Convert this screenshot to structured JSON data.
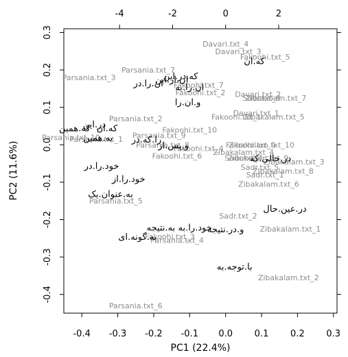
{
  "chart_data": {
    "type": "scatter",
    "xlabel": "PC1 (22.4%)",
    "ylabel": "PC2 (11.6%)",
    "xlim": [
      -0.45,
      0.31
    ],
    "ylim": [
      -0.45,
      0.31
    ],
    "xticks": [
      -0.4,
      -0.3,
      -0.2,
      -0.1,
      0.0,
      0.1,
      0.2,
      0.3
    ],
    "yticks": [
      -0.4,
      -0.3,
      -0.2,
      -0.1,
      0.0,
      0.1,
      0.2,
      0.3
    ],
    "top_xlim": [
      -6.1,
      4.2
    ],
    "top_xticks": [
      -4,
      -2,
      0,
      2
    ],
    "sample_color": "#8c8c8c",
    "variable_color": "#000000",
    "samples": [
      {
        "label": "Davari.txt_4",
        "x": 0.0,
        "y": 0.27
      },
      {
        "label": "Davari.txt_3",
        "x": 0.035,
        "y": 0.25
      },
      {
        "label": "Fakoohi.txt_5",
        "x": 0.11,
        "y": 0.235
      },
      {
        "label": "Parsania.txt_7",
        "x": -0.215,
        "y": 0.2
      },
      {
        "label": "Parsania.txt_3",
        "x": -0.38,
        "y": 0.18
      },
      {
        "label": "Fakoohi.txt_7",
        "x": -0.075,
        "y": 0.16
      },
      {
        "label": "Fakoohi.txt_2",
        "x": -0.07,
        "y": 0.14
      },
      {
        "label": "Davari.txt_2",
        "x": 0.09,
        "y": 0.135
      },
      {
        "label": "Zibakalam.txt_7",
        "x": 0.14,
        "y": 0.125
      },
      {
        "label": "Sadr.txt_6",
        "x": 0.1,
        "y": 0.125
      },
      {
        "label": "Davari.txt_1",
        "x": 0.085,
        "y": 0.085
      },
      {
        "label": "Fakoohi.txt_1",
        "x": 0.03,
        "y": 0.075
      },
      {
        "label": "Zibakalam.txt_5",
        "x": 0.135,
        "y": 0.075
      },
      {
        "label": "Parsania.txt_2",
        "x": -0.25,
        "y": 0.07
      },
      {
        "label": "Fakoohi.txt_10",
        "x": -0.1,
        "y": 0.04
      },
      {
        "label": "Parsania.txt_10",
        "x": -0.43,
        "y": 0.02
      },
      {
        "label": "Parsania.txt_1",
        "x": -0.36,
        "y": 0.015
      },
      {
        "label": "Parsania.txt_9",
        "x": -0.185,
        "y": 0.025
      },
      {
        "label": "Parsania.txt_8",
        "x": -0.175,
        "y": 0.0
      },
      {
        "label": "Fakoohi.txt_9",
        "x": 0.07,
        "y": 0.0
      },
      {
        "label": "Zibakalam.txt_10",
        "x": 0.1,
        "y": 0.0
      },
      {
        "label": "Fakoohi.txt_4",
        "x": -0.075,
        "y": -0.01
      },
      {
        "label": "Zibakalam.txt_4",
        "x": 0.05,
        "y": -0.02
      },
      {
        "label": "Fakoohi.txt_6",
        "x": -0.135,
        "y": -0.03
      },
      {
        "label": "Sadr.txt_4",
        "x": 0.05,
        "y": -0.035
      },
      {
        "label": "Zibakalam.txt_9",
        "x": 0.09,
        "y": -0.035
      },
      {
        "label": "Zibakalam.txt_3",
        "x": 0.19,
        "y": -0.045
      },
      {
        "label": "Sadr.txt_5",
        "x": 0.095,
        "y": -0.06
      },
      {
        "label": "Zibakalam.txt_8",
        "x": 0.16,
        "y": -0.07
      },
      {
        "label": "Sadr.txt_1",
        "x": 0.11,
        "y": -0.08
      },
      {
        "label": "Zibakalam.txt_6",
        "x": 0.12,
        "y": -0.105
      },
      {
        "label": "Parsania.txt_5",
        "x": -0.305,
        "y": -0.15
      },
      {
        "label": "Sadr.txt_2",
        "x": 0.035,
        "y": -0.19
      },
      {
        "label": "Zibakalam.txt_1",
        "x": 0.18,
        "y": -0.225
      },
      {
        "label": "Fakoohi.txt_3",
        "x": -0.155,
        "y": -0.245
      },
      {
        "label": "Parsania.txt_4",
        "x": -0.135,
        "y": -0.255
      },
      {
        "label": "Zibakalam.txt_2",
        "x": 0.175,
        "y": -0.355
      },
      {
        "label": "Parsania.txt_6",
        "x": -0.25,
        "y": -0.43
      }
    ],
    "variables": [
      {
        "label": "کە.ان",
        "x": 0.08,
        "y": 0.225
      },
      {
        "label": "که.در.این",
        "x": -0.125,
        "y": 0.185
      },
      {
        "label": "ان.از.این",
        "x": -0.15,
        "y": 0.175
      },
      {
        "label": "ان.را.در",
        "x": -0.215,
        "y": 0.165
      },
      {
        "label": "ان.را.به",
        "x": -0.1,
        "y": 0.155
      },
      {
        "label": "و.ان.را",
        "x": -0.105,
        "y": 0.115
      },
      {
        "label": "در.این",
        "x": -0.365,
        "y": 0.055
      },
      {
        "label": "کە.ان",
        "x": -0.33,
        "y": 0.045
      },
      {
        "label": "که.همین",
        "x": -0.42,
        "y": 0.045
      },
      {
        "label": "به.همین",
        "x": -0.355,
        "y": 0.02
      },
      {
        "label": "را.کە.در",
        "x": -0.22,
        "y": 0.015
      },
      {
        "label": "و.پس.از",
        "x": -0.145,
        "y": 0.0
      },
      {
        "label": "در.حالی.کە",
        "x": 0.125,
        "y": -0.035
      },
      {
        "label": "خود.را.در",
        "x": -0.345,
        "y": -0.055
      },
      {
        "label": "خود.را.از",
        "x": -0.27,
        "y": -0.09
      },
      {
        "label": "به.عنوان.یک",
        "x": -0.32,
        "y": -0.13
      },
      {
        "label": "در.عین.حال",
        "x": 0.165,
        "y": -0.17
      },
      {
        "label": "خود.را.به",
        "x": -0.085,
        "y": -0.22
      },
      {
        "label": "به.نتیجه",
        "x": -0.18,
        "y": -0.22
      },
      {
        "label": "و.در.نتیجه",
        "x": 0.0,
        "y": -0.225
      },
      {
        "label": "به.گونه.ای",
        "x": -0.245,
        "y": -0.245
      },
      {
        "label": "با.توجه.به",
        "x": 0.025,
        "y": -0.325
      }
    ]
  }
}
